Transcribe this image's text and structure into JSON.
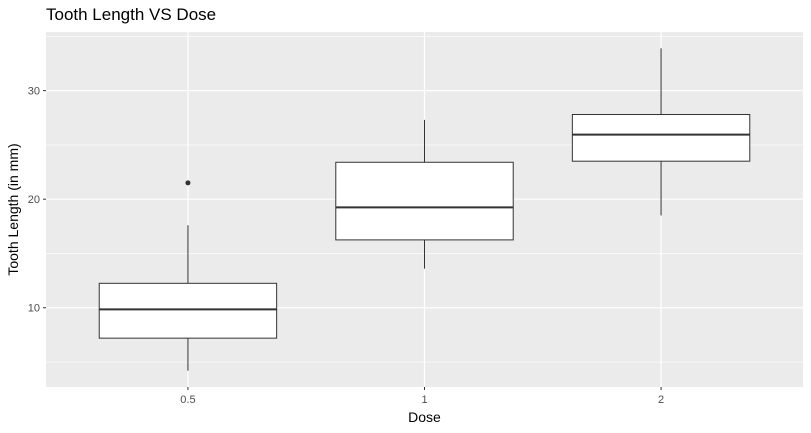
{
  "chart_data": {
    "type": "boxplot",
    "title": "Tooth Length VS Dose",
    "xlabel": "Dose",
    "ylabel": "Tooth Length (in mm)",
    "categories": [
      "0.5",
      "1",
      "2"
    ],
    "boxes": [
      {
        "category": "0.5",
        "whisker_low": 4.2,
        "q1": 7.2,
        "median": 9.85,
        "q3": 12.25,
        "whisker_high": 17.6,
        "outliers": [
          21.5
        ]
      },
      {
        "category": "1",
        "whisker_low": 13.6,
        "q1": 16.25,
        "median": 19.25,
        "q3": 23.4,
        "whisker_high": 27.3,
        "outliers": []
      },
      {
        "category": "2",
        "whisker_low": 18.5,
        "q1": 23.5,
        "median": 25.95,
        "q3": 27.8,
        "whisker_high": 33.9,
        "outliers": []
      }
    ],
    "y_ticks": [
      10,
      20,
      30
    ],
    "ylim": [
      2.7,
      35.4
    ],
    "grid": true,
    "colors": {
      "panel_background": "#ebebeb",
      "grid_line": "#ffffff",
      "box_fill": "#ffffff",
      "box_line": "#333333",
      "tick_label": "#4d4d4d"
    }
  }
}
